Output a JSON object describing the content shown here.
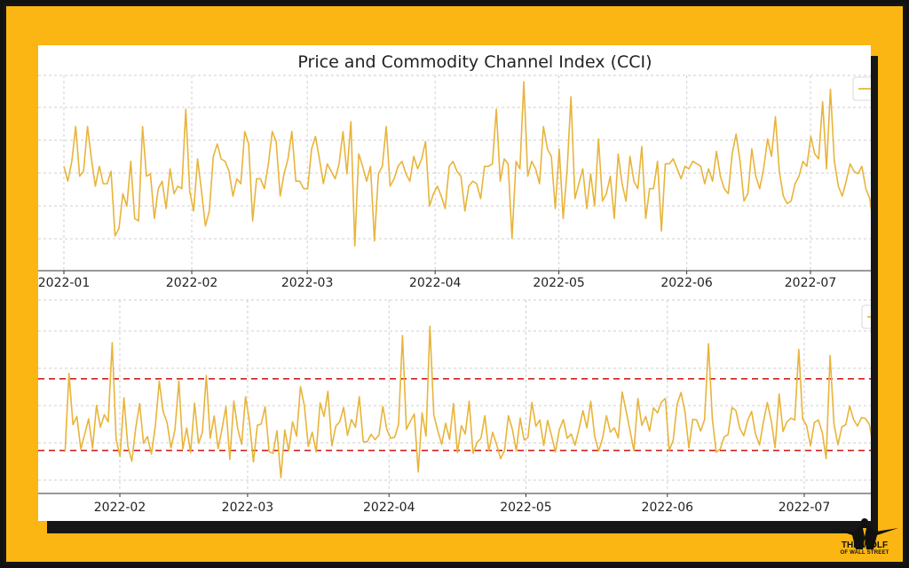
{
  "chart_data": [
    {
      "type": "line",
      "title": "Price and Commodity Channel Index (CCI)",
      "x_tick_labels": [
        "2022-01",
        "2022-02",
        "2022-03",
        "2022-04",
        "2022-05",
        "2022-06",
        "2022-07"
      ],
      "x_range": [
        "2022-01-01",
        "2022-07-23"
      ],
      "grid": true,
      "legend": "top-right",
      "series": [
        {
          "color": "#e8b43a",
          "values": [
            0.42,
            0.36,
            0.44,
            0.58,
            0.38,
            0.4,
            0.58,
            0.45,
            0.34,
            0.42,
            0.35,
            0.35,
            0.4,
            0.14,
            0.17,
            0.31,
            0.26,
            0.44,
            0.21,
            0.2,
            0.58,
            0.38,
            0.39,
            0.21,
            0.33,
            0.36,
            0.25,
            0.41,
            0.31,
            0.34,
            0.33,
            0.65,
            0.32,
            0.24,
            0.45,
            0.32,
            0.18,
            0.24,
            0.46,
            0.51,
            0.45,
            0.44,
            0.4,
            0.3,
            0.37,
            0.35,
            0.56,
            0.51,
            0.2,
            0.37,
            0.37,
            0.33,
            0.43,
            0.56,
            0.52,
            0.3,
            0.39,
            0.45,
            0.56,
            0.36,
            0.36,
            0.33,
            0.33,
            0.49,
            0.54,
            0.45,
            0.35,
            0.43,
            0.4,
            0.37,
            0.43,
            0.56,
            0.39,
            0.6,
            0.1,
            0.47,
            0.42,
            0.36,
            0.42,
            0.12,
            0.39,
            0.42,
            0.58,
            0.34,
            0.37,
            0.42,
            0.44,
            0.39,
            0.36,
            0.46,
            0.41,
            0.45,
            0.52,
            0.26,
            0.31,
            0.34,
            0.3,
            0.25,
            0.42,
            0.44,
            0.4,
            0.38,
            0.24,
            0.34,
            0.36,
            0.35,
            0.29,
            0.42,
            0.42,
            0.43,
            0.65,
            0.36,
            0.45,
            0.43,
            0.13,
            0.44,
            0.41,
            0.76,
            0.38,
            0.44,
            0.41,
            0.35,
            0.58,
            0.49,
            0.46,
            0.25,
            0.49,
            0.21,
            0.4,
            0.7,
            0.29,
            0.35,
            0.41,
            0.25,
            0.39,
            0.26,
            0.53,
            0.28,
            0.31,
            0.38,
            0.21,
            0.47,
            0.35,
            0.28,
            0.46,
            0.36,
            0.33,
            0.5,
            0.21,
            0.33,
            0.33,
            0.44,
            0.16,
            0.43,
            0.43,
            0.45,
            0.41,
            0.37,
            0.42,
            0.41,
            0.44,
            0.43,
            0.42,
            0.35,
            0.41,
            0.36,
            0.48,
            0.38,
            0.33,
            0.31,
            0.47,
            0.55,
            0.44,
            0.28,
            0.31,
            0.49,
            0.38,
            0.33,
            0.41,
            0.53,
            0.46,
            0.62,
            0.4,
            0.3,
            0.27,
            0.28,
            0.35,
            0.38,
            0.44,
            0.42,
            0.54,
            0.47,
            0.45,
            0.68,
            0.41,
            0.73,
            0.44,
            0.34,
            0.3,
            0.36,
            0.43,
            0.4,
            0.39,
            0.42,
            0.33,
            0.29,
            0.18,
            0.38,
            0.44,
            0.38,
            0.28,
            0.46,
            0.38,
            0.39
          ]
        }
      ]
    },
    {
      "type": "line",
      "x_tick_labels": [
        "2022-02",
        "2022-03",
        "2022-04",
        "2022-05",
        "2022-06",
        "2022-07"
      ],
      "x_range": [
        "2022-01-20",
        "2022-07-23"
      ],
      "grid": true,
      "legend": "top-right",
      "reference_lines": [
        100,
        -100
      ],
      "reference_line_color": "#d0201c",
      "y_range": [
        -220,
        320
      ],
      "series": [
        {
          "color": "#e8b43a",
          "values": [
            -104,
            115,
            -28,
            -5,
            -96,
            -55,
            -12,
            -94,
            26,
            -35,
            0,
            -20,
            201,
            -68,
            -117,
            47,
            -88,
            -130,
            -37,
            31,
            -80,
            -61,
            -110,
            -32,
            93,
            9,
            -22,
            -93,
            -42,
            94,
            -96,
            -37,
            -106,
            32,
            -80,
            -49,
            109,
            -66,
            -4,
            -95,
            -40,
            22,
            -125,
            38,
            -39,
            -83,
            50,
            -19,
            -132,
            -30,
            -26,
            22,
            -103,
            -108,
            -45,
            -176,
            -43,
            -101,
            -20,
            -60,
            78,
            25,
            -89,
            -49,
            -104,
            33,
            -5,
            65,
            -87,
            -32,
            -20,
            20,
            -58,
            -14,
            -35,
            50,
            -75,
            -76,
            -55,
            -70,
            -57,
            23,
            -41,
            -66,
            -63,
            -27,
            221,
            -41,
            -19,
            2,
            -160,
            5,
            -60,
            247,
            -1,
            -45,
            -83,
            -24,
            -69,
            31,
            -106,
            -31,
            -54,
            37,
            -108,
            -78,
            -66,
            -3,
            -101,
            -49,
            -84,
            -123,
            -100,
            -3,
            -40,
            -101,
            -10,
            -71,
            -63,
            34,
            -33,
            -15,
            -86,
            -16,
            -59,
            -104,
            -41,
            -14,
            -66,
            -54,
            -85,
            -39,
            11,
            -37,
            37,
            -61,
            -101,
            -66,
            -3,
            -49,
            -37,
            -65,
            63,
            10,
            -44,
            -101,
            45,
            -30,
            -5,
            -46,
            19,
            5,
            35,
            45,
            -100,
            -72,
            29,
            62,
            8,
            -93,
            -13,
            -15,
            -46,
            -14,
            198,
            -13,
            -105,
            -96,
            -62,
            -56,
            20,
            11,
            -39,
            -59,
            -16,
            9,
            -54,
            -85,
            -20,
            34,
            -17,
            -92,
            58,
            -47,
            -20,
            -10,
            -15,
            182,
            -12,
            -30,
            -87,
            -22,
            -15,
            -50,
            -123,
            165,
            -26,
            -84,
            -34,
            -28,
            24,
            -14,
            -32,
            -8,
            -11,
            -27,
            -88,
            -43,
            -51,
            -102,
            -36,
            -27,
            -8,
            51,
            -36
          ]
        }
      ]
    }
  ],
  "logo": {
    "line1": "THE WOLF",
    "line2": "OF WALL STREET"
  }
}
